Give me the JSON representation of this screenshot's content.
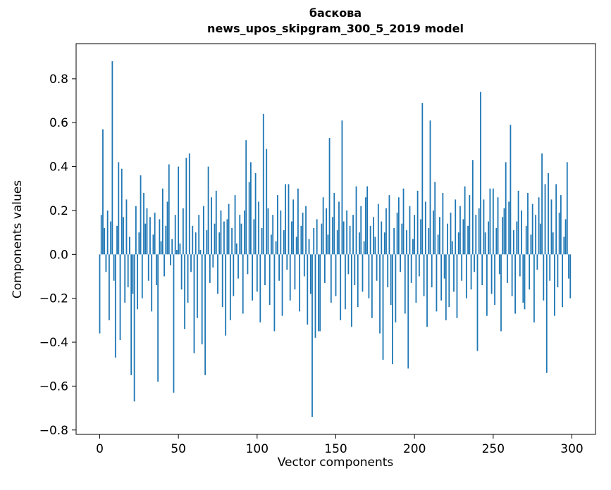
{
  "figure": {
    "title_line1": "баскова",
    "title_line2": "news_upos_skipgram_300_5_2019 model",
    "xlabel": "Vector components",
    "ylabel": "Components values"
  },
  "chart_data": {
    "type": "bar",
    "title": "баскова\nnews_upos_skipgram_300_5_2019 model",
    "xlabel": "Vector components",
    "ylabel": "Components values",
    "legend": "none",
    "grid": false,
    "bar_color": "#1f77b4",
    "xlim": [
      -15,
      315
    ],
    "ylim": [
      -0.82,
      0.96
    ],
    "x_ticks": [
      0,
      50,
      100,
      150,
      200,
      250,
      300
    ],
    "y_ticks": [
      -0.8,
      -0.6,
      -0.4,
      -0.2,
      0.0,
      0.2,
      0.4,
      0.6,
      0.8
    ],
    "n_components": 300,
    "values": [
      -0.36,
      0.18,
      0.57,
      0.12,
      -0.08,
      0.2,
      -0.3,
      0.15,
      0.88,
      -0.12,
      -0.47,
      0.13,
      0.42,
      -0.39,
      0.39,
      0.17,
      -0.22,
      0.25,
      -0.15,
      0.08,
      -0.55,
      -0.18,
      -0.67,
      0.22,
      -0.25,
      0.1,
      0.36,
      -0.2,
      0.28,
      0.14,
      0.21,
      -0.12,
      0.17,
      -0.26,
      0.09,
      0.19,
      -0.14,
      -0.58,
      0.16,
      0.06,
      0.3,
      -0.1,
      0.13,
      0.24,
      0.41,
      -0.05,
      0.07,
      -0.63,
      0.18,
      0.02,
      0.4,
      0.05,
      -0.16,
      0.21,
      -0.34,
      0.44,
      -0.22,
      0.46,
      -0.08,
      0.13,
      -0.45,
      0.1,
      -0.29,
      0.18,
      0.02,
      -0.41,
      0.22,
      -0.55,
      0.11,
      0.4,
      -0.13,
      0.26,
      -0.06,
      0.14,
      0.29,
      -0.18,
      0.1,
      0.2,
      -0.24,
      0.15,
      -0.37,
      0.16,
      0.23,
      -0.3,
      0.12,
      -0.19,
      0.27,
      0.05,
      -0.11,
      0.18,
      0.14,
      -0.27,
      0.2,
      0.52,
      -0.09,
      0.33,
      0.42,
      -0.21,
      0.16,
      0.37,
      -0.17,
      0.24,
      -0.31,
      0.12,
      0.64,
      -0.14,
      0.48,
      0.21,
      -0.23,
      0.09,
      0.18,
      -0.35,
      0.06,
      0.27,
      -0.12,
      0.2,
      -0.28,
      0.11,
      0.32,
      -0.07,
      0.32,
      -0.21,
      0.15,
      0.25,
      -0.16,
      0.08,
      0.3,
      -0.26,
      0.13,
      0.19,
      -0.1,
      0.22,
      -0.32,
      0.07,
      -0.18,
      -0.74,
      0.12,
      -0.38,
      0.16,
      -0.35,
      -0.35,
      0.14,
      0.26,
      -0.13,
      0.21,
      0.09,
      0.53,
      -0.22,
      0.17,
      0.28,
      -0.19,
      0.11,
      0.24,
      -0.3,
      0.61,
      0.15,
      -0.25,
      0.2,
      -0.09,
      0.13,
      -0.33,
      0.18,
      -0.14,
      0.31,
      -0.24,
      0.1,
      0.22,
      -0.17,
      0.06,
      0.26,
      0.31,
      -0.2,
      0.13,
      -0.29,
      0.17,
      0.08,
      -0.12,
      0.23,
      -0.36,
      0.15,
      -0.48,
      0.1,
      0.21,
      -0.15,
      0.27,
      -0.23,
      -0.5,
      0.12,
      -0.31,
      0.19,
      0.26,
      -0.08,
      0.14,
      0.3,
      -0.27,
      0.11,
      -0.52,
      0.22,
      -0.13,
      0.07,
      0.18,
      -0.22,
      0.29,
      -0.1,
      0.16,
      0.69,
      -0.19,
      0.24,
      -0.33,
      0.12,
      0.61,
      -0.15,
      0.2,
      0.33,
      -0.26,
      0.09,
      0.17,
      -0.21,
      0.28,
      -0.11,
      -0.3,
      0.14,
      -0.24,
      0.19,
      0.06,
      -0.17,
      0.25,
      -0.29,
      0.1,
      0.22,
      -0.12,
      0.16,
      0.31,
      -0.2,
      0.13,
      0.27,
      -0.16,
      0.43,
      -0.08,
      0.18,
      -0.44,
      0.21,
      0.74,
      -0.14,
      0.25,
      0.1,
      -0.28,
      0.15,
      0.3,
      -0.18,
      0.3,
      -0.23,
      0.12,
      0.26,
      -0.09,
      -0.35,
      0.17,
      0.21,
      0.42,
      -0.13,
      0.24,
      0.59,
      -0.19,
      0.11,
      -0.27,
      0.15,
      0.29,
      -0.1,
      0.2,
      -0.22,
      -0.25,
      0.13,
      0.28,
      -0.16,
      0.09,
      0.23,
      -0.31,
      0.18,
      -0.07,
      0.26,
      0.14,
      0.46,
      -0.21,
      0.32,
      -0.54,
      0.37,
      -0.12,
      0.25,
      0.1,
      -0.28,
      0.32,
      -0.15,
      0.19,
      0.27,
      -0.24,
      0.08,
      0.16,
      0.42,
      -0.11,
      -0.2
    ]
  }
}
